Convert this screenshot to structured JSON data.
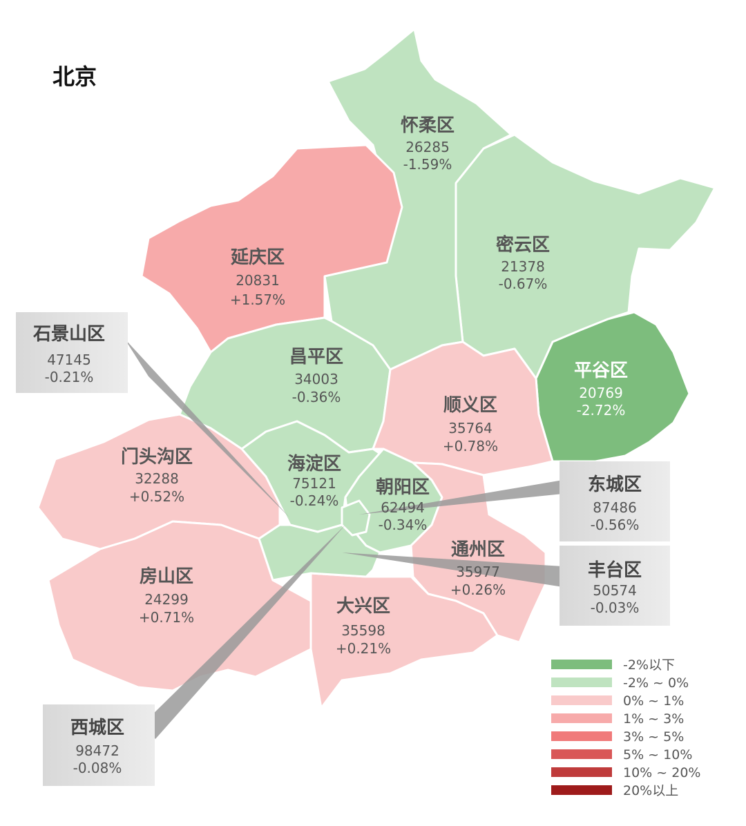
{
  "title": "北京",
  "colors": {
    "green_dark": "#7dbd7d",
    "green_light": "#bfe3c0",
    "pink_light": "#f9caca",
    "pink_mid": "#f7aaaa",
    "red_3_5": "#f07a7a",
    "red_5_10": "#d95757",
    "red_10_20": "#bf3b3b",
    "red_20_up": "#9e1b1b",
    "callout_box": "#d5d5d5",
    "callout_line": "#9a9a9a"
  },
  "districts": [
    {
      "key": "huairou",
      "name": "怀柔区",
      "value": "26285",
      "change": "-1.59%",
      "category": "-2% ~ 0%"
    },
    {
      "key": "miyun",
      "name": "密云区",
      "value": "21378",
      "change": "-0.67%",
      "category": "-2% ~ 0%"
    },
    {
      "key": "yanqing",
      "name": "延庆区",
      "value": "20831",
      "change": "+1.57%",
      "category": "1% ~ 3%"
    },
    {
      "key": "changping",
      "name": "昌平区",
      "value": "34003",
      "change": "-0.36%",
      "category": "-2% ~ 0%"
    },
    {
      "key": "pinggu",
      "name": "平谷区",
      "value": "20769",
      "change": "-2.72%",
      "category": "-2%以下"
    },
    {
      "key": "shunyi",
      "name": "顺义区",
      "value": "35764",
      "change": "+0.78%",
      "category": "0% ~ 1%"
    },
    {
      "key": "mentougou",
      "name": "门头沟区",
      "value": "32288",
      "change": "+0.52%",
      "category": "0% ~ 1%"
    },
    {
      "key": "haidian",
      "name": "海淀区",
      "value": "75121",
      "change": "-0.24%",
      "category": "-2% ~ 0%"
    },
    {
      "key": "chaoyang",
      "name": "朝阳区",
      "value": "62494",
      "change": "-0.34%",
      "category": "-2% ~ 0%"
    },
    {
      "key": "tongzhou",
      "name": "通州区",
      "value": "35977",
      "change": "+0.26%",
      "category": "0% ~ 1%"
    },
    {
      "key": "fangshan",
      "name": "房山区",
      "value": "24299",
      "change": "+0.71%",
      "category": "0% ~ 1%"
    },
    {
      "key": "daxing",
      "name": "大兴区",
      "value": "35598",
      "change": "+0.21%",
      "category": "0% ~ 1%"
    }
  ],
  "callouts": [
    {
      "key": "shijingshan",
      "name": "石景山区",
      "value": "47145",
      "change": "-0.21%"
    },
    {
      "key": "dongcheng",
      "name": "东城区",
      "value": "87486",
      "change": "-0.56%"
    },
    {
      "key": "fengtai",
      "name": "丰台区",
      "value": "50574",
      "change": "-0.03%"
    },
    {
      "key": "xicheng",
      "name": "西城区",
      "value": "98472",
      "change": "-0.08%"
    }
  ],
  "legend": [
    {
      "label": "-2%以下",
      "color": "#7dbd7d"
    },
    {
      "label": "-2% ~ 0%",
      "color": "#bfe3c0"
    },
    {
      "label": "0% ~ 1%",
      "color": "#f9caca"
    },
    {
      "label": "1% ~ 3%",
      "color": "#f7aaaa"
    },
    {
      "label": "3% ~ 5%",
      "color": "#f07a7a"
    },
    {
      "label": "5% ~ 10%",
      "color": "#d95757"
    },
    {
      "label": "10% ~ 20%",
      "color": "#bf3b3b"
    },
    {
      "label": "20%以上",
      "color": "#9e1b1b"
    }
  ]
}
